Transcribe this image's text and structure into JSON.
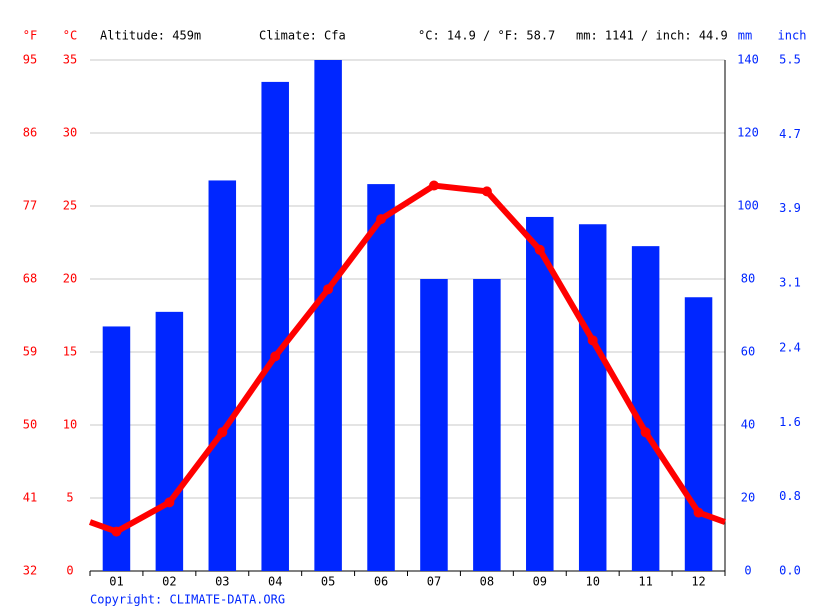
{
  "chart_data": {
    "type": "combo",
    "header": {
      "altitude": "Altitude: 459m",
      "climate": "Climate: Cfa",
      "temperature": "°C: 14.9 / °F: 58.7",
      "precipitation": "mm: 1141 / inch: 44.9"
    },
    "units": {
      "f": "°F",
      "c": "°C",
      "mm": "mm",
      "inch": "inch"
    },
    "copyright": "Copyright: CLIMATE-DATA.ORG",
    "categories": [
      "01",
      "02",
      "03",
      "04",
      "05",
      "06",
      "07",
      "08",
      "09",
      "10",
      "11",
      "12"
    ],
    "series": [
      {
        "type": "bar",
        "axis": "y2",
        "color": "#0026ff",
        "values": [
          67,
          71,
          107,
          134,
          140,
          106,
          80,
          80,
          97,
          95,
          89,
          75
        ]
      },
      {
        "type": "line",
        "color": "#ff0000",
        "values": [
          2.7,
          4.7,
          9.5,
          14.7,
          19.3,
          24.1,
          26.4,
          26.0,
          22.0,
          15.8,
          9.5,
          4.0
        ]
      }
    ],
    "ylim": [
      0,
      35
    ],
    "yticks": [
      0,
      5,
      10,
      15,
      20,
      25,
      30,
      35
    ],
    "flim": [
      32,
      95
    ],
    "fticks": [
      32,
      41,
      50,
      59,
      68,
      77,
      86,
      95
    ],
    "y2lim": [
      0,
      140
    ],
    "y2ticks": [
      0,
      20,
      40,
      60,
      80,
      100,
      120,
      140
    ],
    "inchlim": [
      0,
      5.5
    ],
    "inchticks": [
      {
        "value": 0,
        "label": "0.0"
      },
      0.8,
      1.6,
      2.4,
      3.1,
      3.9,
      4.7,
      5.5
    ],
    "grid": true
  }
}
